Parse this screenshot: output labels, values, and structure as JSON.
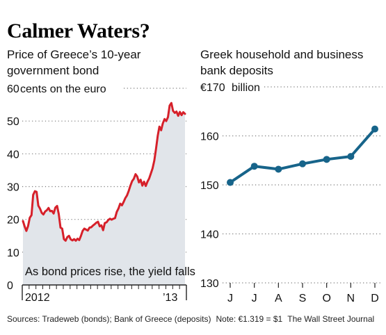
{
  "headline": "Calmer Waters?",
  "footer": {
    "sources": "Sources: Tradeweb (bonds); Bank of Greece (deposits)",
    "note": "Note: €1.319 = $1",
    "publisher": "The Wall Street Journal"
  },
  "colors": {
    "bond_line": "#d6202a",
    "bond_area": "#e1e5ea",
    "deposit_line": "#17648a",
    "grid": "#777777"
  },
  "chart_data": [
    {
      "type": "area",
      "subtitle": "Price of Greece’s 10-year government bond",
      "unit_label": "cents on the euro",
      "annotation": "As bond prices rise, the yield falls",
      "yticks": [
        "0",
        "10",
        "20",
        "30",
        "40",
        "50",
        "60"
      ],
      "ylim": [
        0,
        60
      ],
      "xlabels": [
        "2012",
        "’13"
      ],
      "grid": true,
      "series": [
        {
          "values": [
            19.5,
            17.8,
            16.5,
            18,
            20.5,
            21.3,
            27.5,
            28.6,
            28.4,
            24.2,
            23.3,
            22,
            21.5,
            22.4,
            22.8,
            23.5,
            22.5,
            22.6,
            21.8,
            23.6,
            24.1,
            21.6,
            17.5,
            17.2,
            14,
            13.5,
            14.6,
            15,
            13.9,
            13.6,
            14,
            13.5,
            14.1,
            13.7,
            15,
            16.5,
            17.2,
            16.9,
            16.6,
            17.5,
            17.6,
            18.1,
            18.5,
            19,
            19.3,
            17.9,
            18.2,
            16.7,
            18.9,
            19.1,
            19.8,
            20.2,
            19.9,
            20.2,
            20.4,
            22.3,
            23.3,
            24.8,
            24.3,
            25.3,
            26.5,
            27.3,
            28.7,
            30.3,
            31.7,
            32.4,
            33.8,
            33.1,
            31.3,
            32.1,
            30.3,
            31.5,
            30.2,
            31.5,
            32.5,
            34,
            35.6,
            38,
            41.5,
            45.5,
            48.3,
            47.2,
            49.3,
            50.6,
            50,
            51.2,
            54.7,
            55.5,
            53.1,
            52.5,
            52.9,
            51.6,
            52.8,
            51.8,
            52.7,
            52.2
          ]
        }
      ]
    },
    {
      "type": "line",
      "subtitle": "Greek household and business bank deposits",
      "unit_label": "billion",
      "top_tick": "€170",
      "yticks": [
        "130",
        "140",
        "150",
        "160"
      ],
      "ylim": [
        130,
        170
      ],
      "categories": [
        "J",
        "J",
        "A",
        "S",
        "O",
        "N",
        "D"
      ],
      "grid": true,
      "series": [
        {
          "values": [
            150.5,
            153.8,
            153.2,
            154.3,
            155.2,
            155.8,
            161.4
          ]
        }
      ]
    }
  ]
}
